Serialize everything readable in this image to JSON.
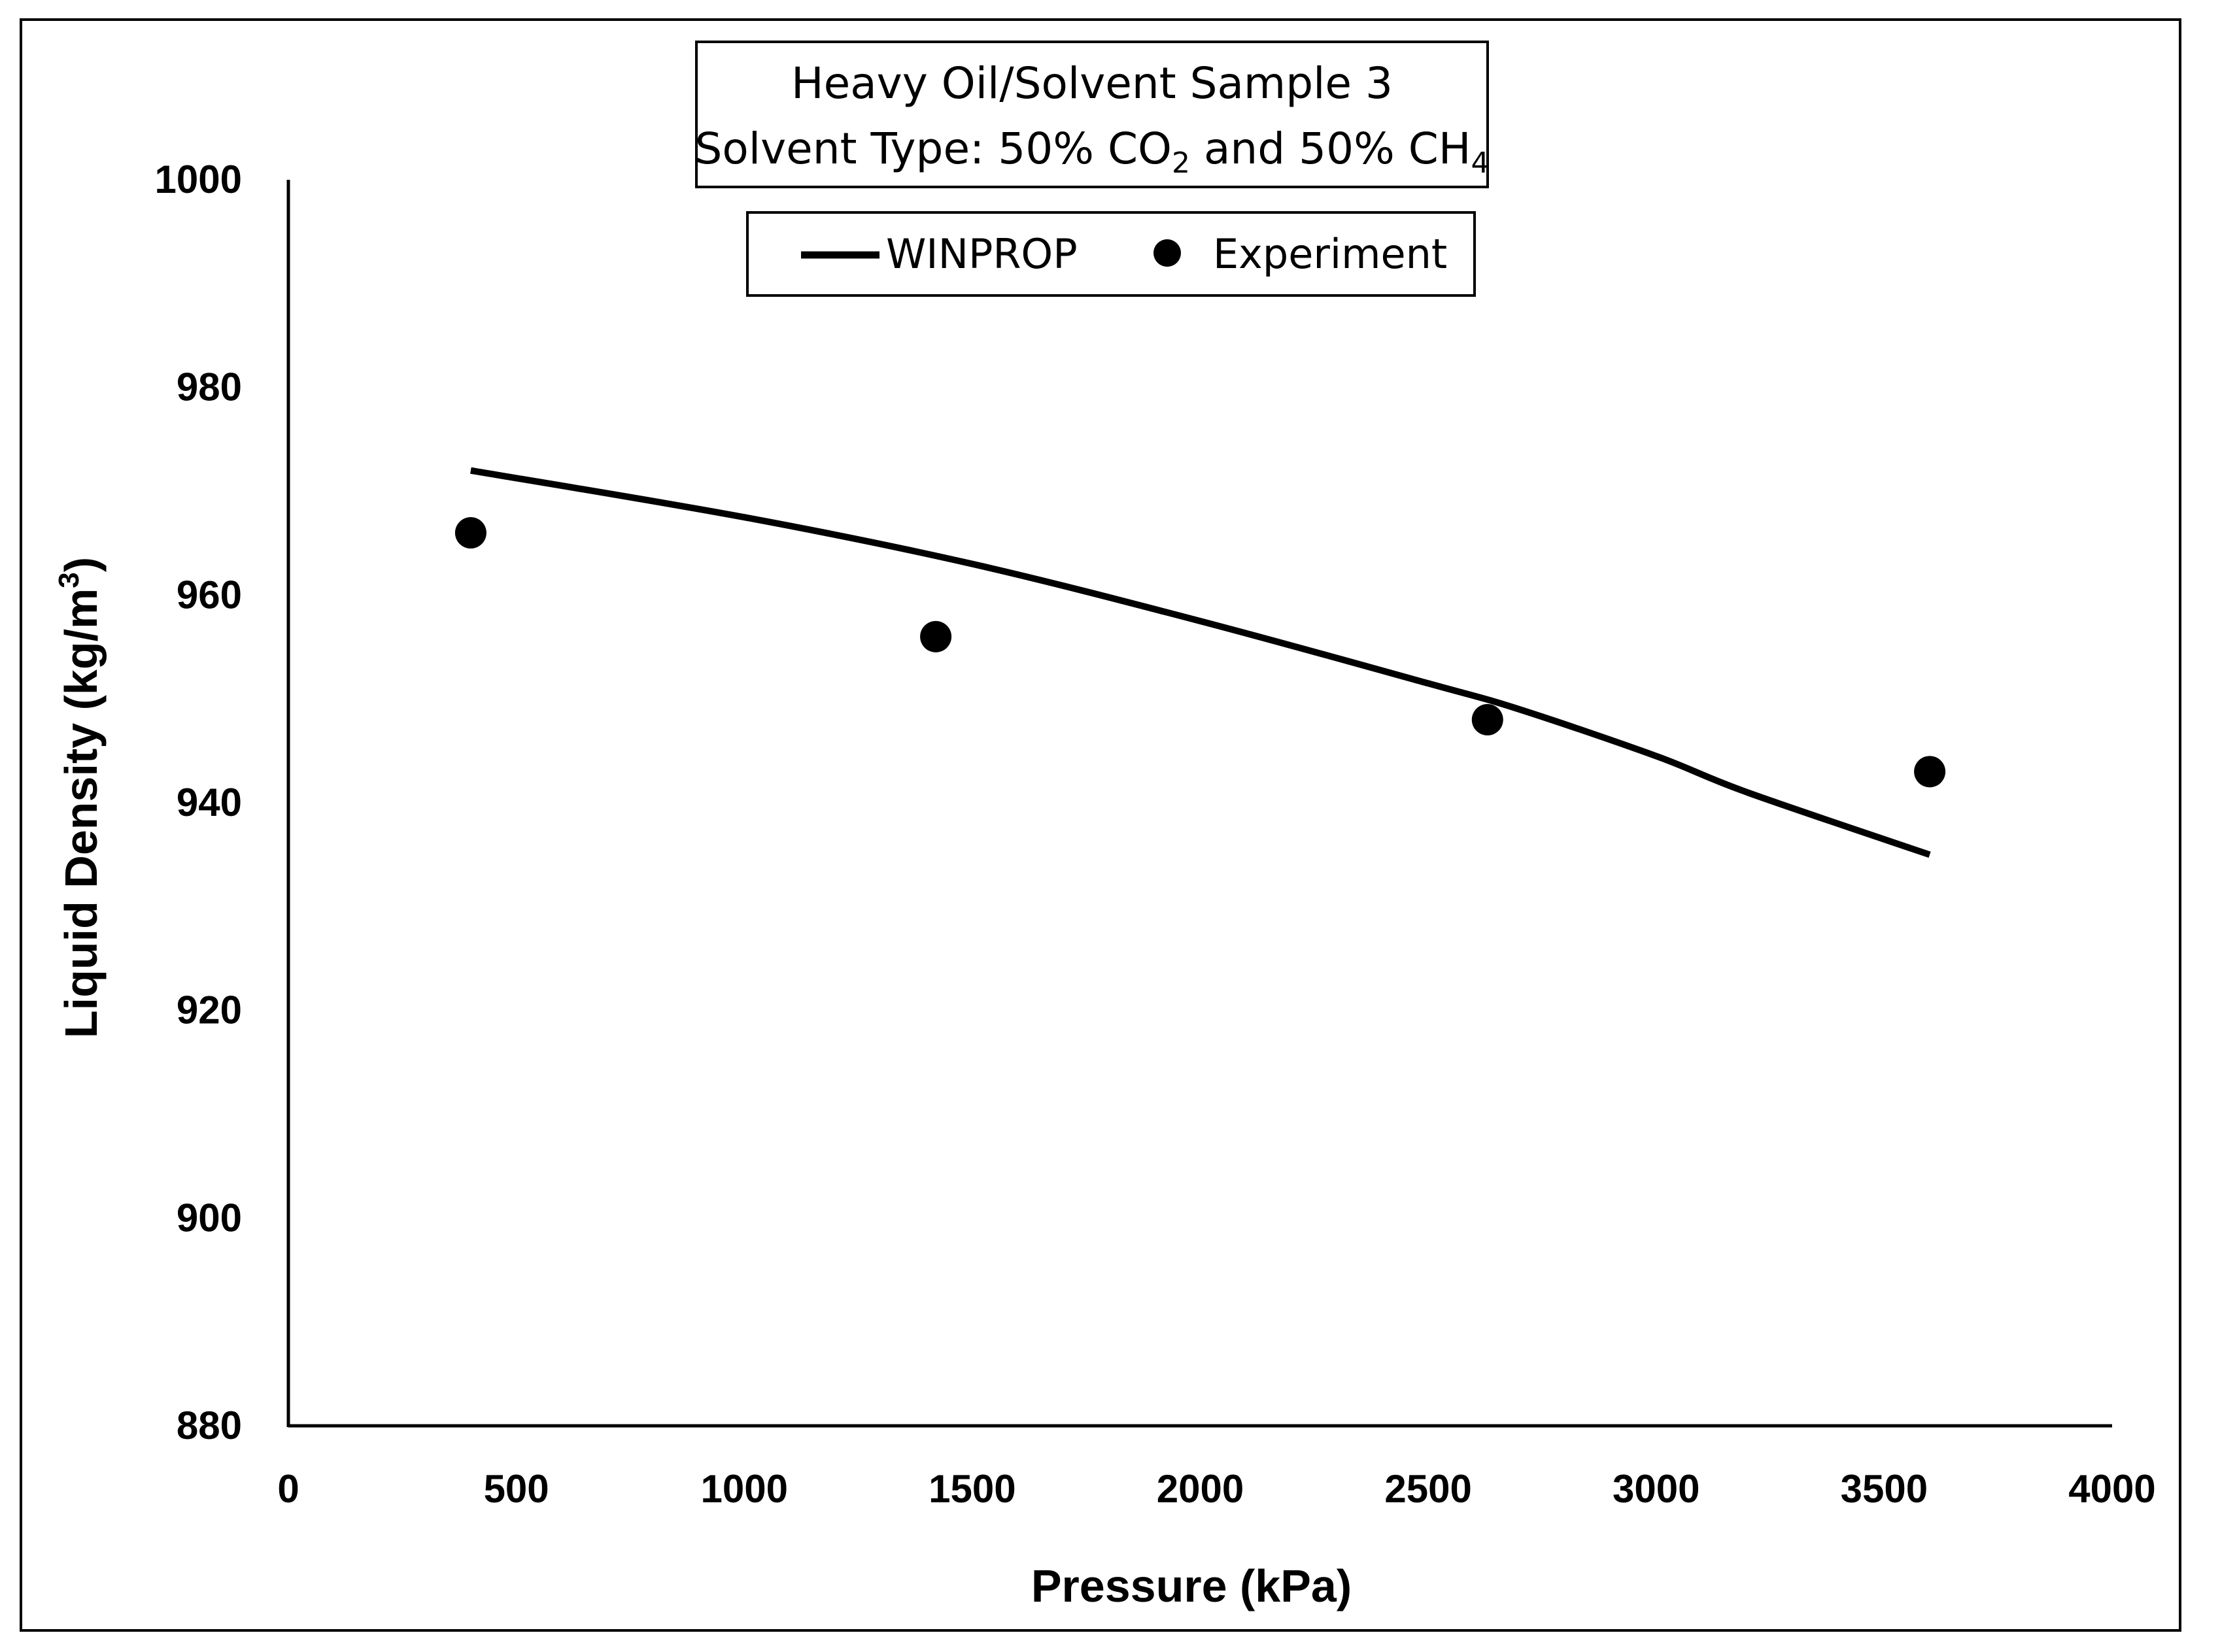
{
  "chart_data": {
    "type": "line",
    "title_line1": "Heavy Oil/Solvent Sample 3",
    "title_line2": {
      "prefix": "Solvent Type: 50% CO",
      "sub1": "2",
      "middle": " and 50% CH",
      "sub2": "4"
    },
    "xlabel": "Pressure (kPa)",
    "ylabel": {
      "text": "Liquid Density (kg/m",
      "sup": "3",
      "suffix": ")"
    },
    "xlim": [
      0,
      4000
    ],
    "ylim": [
      880,
      1000
    ],
    "xticks": [
      0,
      500,
      1000,
      1500,
      2000,
      2500,
      3000,
      3500,
      4000
    ],
    "yticks": [
      880,
      900,
      920,
      940,
      960,
      980,
      1000
    ],
    "grid": false,
    "legend_position": "top-center",
    "series": [
      {
        "name": "WINPROP",
        "kind": "line",
        "color": "#000000",
        "x": [
          400,
          1000,
          1500,
          2000,
          2500,
          2700,
          3000,
          3200,
          3600
        ],
        "y": [
          972,
          967.5,
          963,
          957.5,
          951.5,
          949,
          944.5,
          941,
          935
        ]
      },
      {
        "name": "Experiment",
        "kind": "scatter",
        "color": "#000000",
        "x": [
          400,
          1420,
          2630,
          3600
        ],
        "y": [
          966,
          956,
          948,
          943
        ]
      }
    ]
  }
}
